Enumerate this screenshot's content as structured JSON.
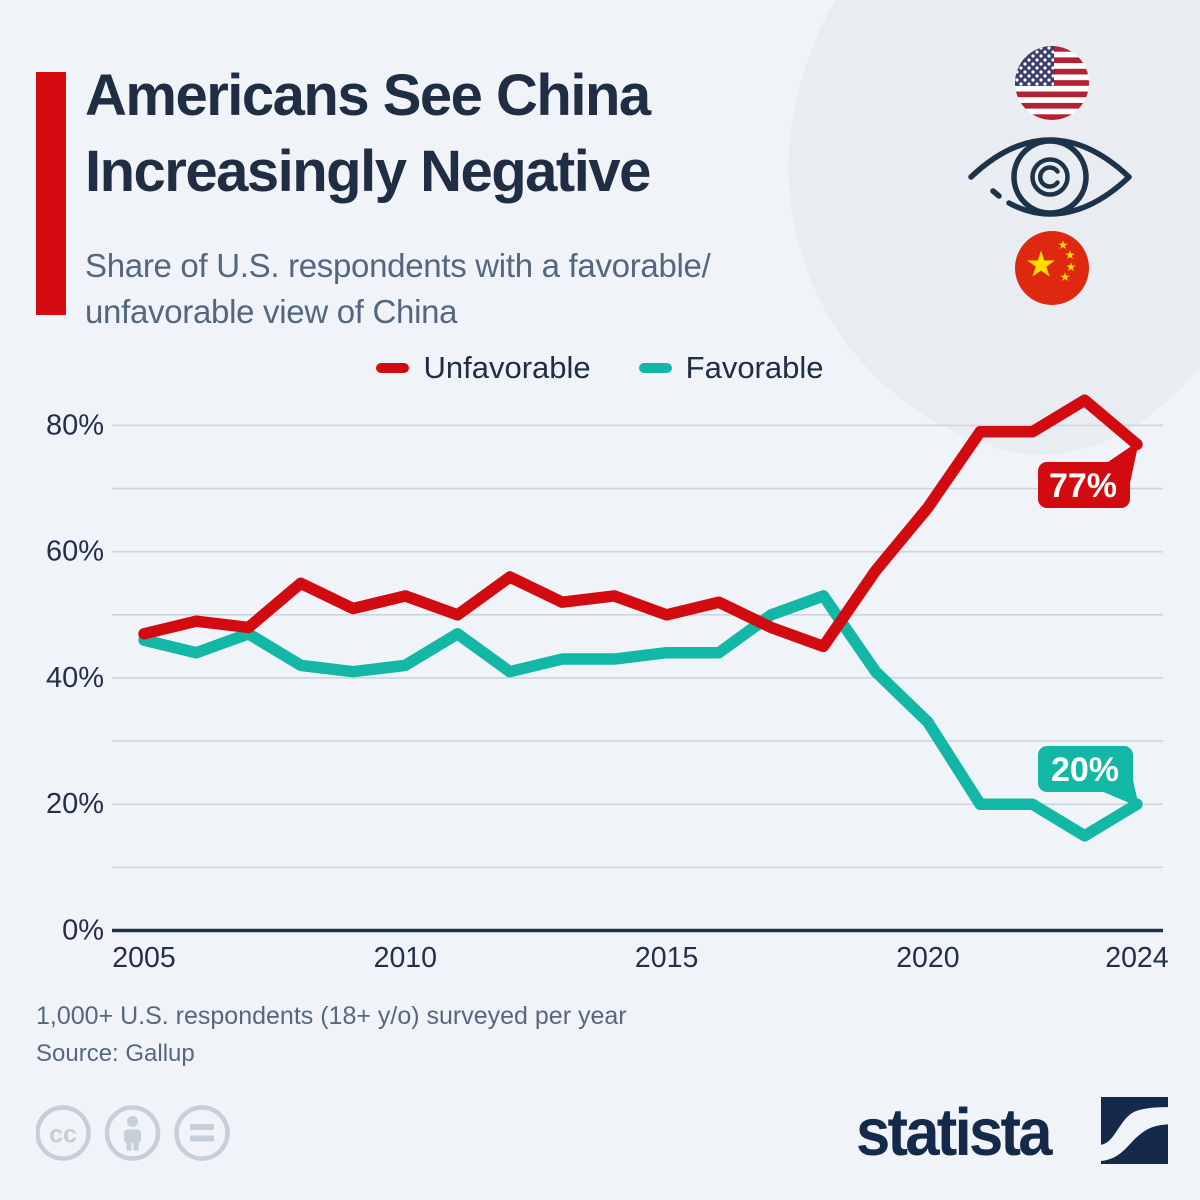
{
  "header": {
    "title_line1": "Americans See China",
    "title_line2": "Increasingly Negative",
    "subtitle_line1": "Share of U.S. respondents with a favorable/",
    "subtitle_line2": "unfavorable view of China"
  },
  "colors": {
    "unfavorable": "#d20b11",
    "favorable": "#13b7a6",
    "accent_bar": "#d40b11",
    "title_text": "#202e44",
    "subtitle_text": "#53687e",
    "axis_text": "#223049",
    "gridline": "#ccd5de",
    "background": "#f0f4f8",
    "badge_text": "#ffffff"
  },
  "legend": {
    "items": [
      {
        "label": "Unfavorable",
        "color": "#d20b11"
      },
      {
        "label": "Favorable",
        "color": "#13b7a6"
      }
    ]
  },
  "chart_data": {
    "type": "line",
    "x": [
      2005,
      2006,
      2007,
      2008,
      2009,
      2010,
      2011,
      2012,
      2013,
      2014,
      2015,
      2016,
      2017,
      2018,
      2019,
      2020,
      2021,
      2022,
      2023,
      2024
    ],
    "series": [
      {
        "name": "Unfavorable",
        "color": "#d20b11",
        "values": [
          47,
          49,
          48,
          55,
          51,
          53,
          50,
          56,
          52,
          53,
          50,
          52,
          48,
          45,
          57,
          67,
          79,
          79,
          84,
          77
        ]
      },
      {
        "name": "Favorable",
        "color": "#13b7a6",
        "values": [
          46,
          44,
          47,
          42,
          41,
          42,
          47,
          41,
          43,
          43,
          44,
          44,
          50,
          53,
          41,
          33,
          20,
          20,
          15,
          20
        ]
      }
    ],
    "annotations": [
      {
        "series": "Unfavorable",
        "x": 2024,
        "label": "77%"
      },
      {
        "series": "Favorable",
        "x": 2024,
        "label": "20%"
      }
    ],
    "y_gridlines": [
      0,
      10,
      20,
      30,
      40,
      50,
      60,
      70,
      80
    ],
    "y_tick_labels": [
      {
        "value": 0,
        "label": "0%"
      },
      {
        "value": 20,
        "label": "20%"
      },
      {
        "value": 40,
        "label": "40%"
      },
      {
        "value": 60,
        "label": "60%"
      },
      {
        "value": 80,
        "label": "80%"
      }
    ],
    "x_tick_labels": [
      {
        "value": 2005,
        "label": "2005"
      },
      {
        "value": 2010,
        "label": "2010"
      },
      {
        "value": 2015,
        "label": "2015"
      },
      {
        "value": 2020,
        "label": "2020"
      },
      {
        "value": 2024,
        "label": "2024"
      }
    ],
    "ylim": [
      0,
      85
    ],
    "grid": true,
    "legend_position": "top"
  },
  "footer": {
    "note": "1,000+ U.S. respondents (18+ y/o) surveyed per year",
    "source": "Source: Gallup"
  },
  "branding": {
    "logo_text": "statista"
  },
  "license": {
    "cc_text": "cc",
    "icons": [
      "cc",
      "by",
      "nd"
    ]
  }
}
